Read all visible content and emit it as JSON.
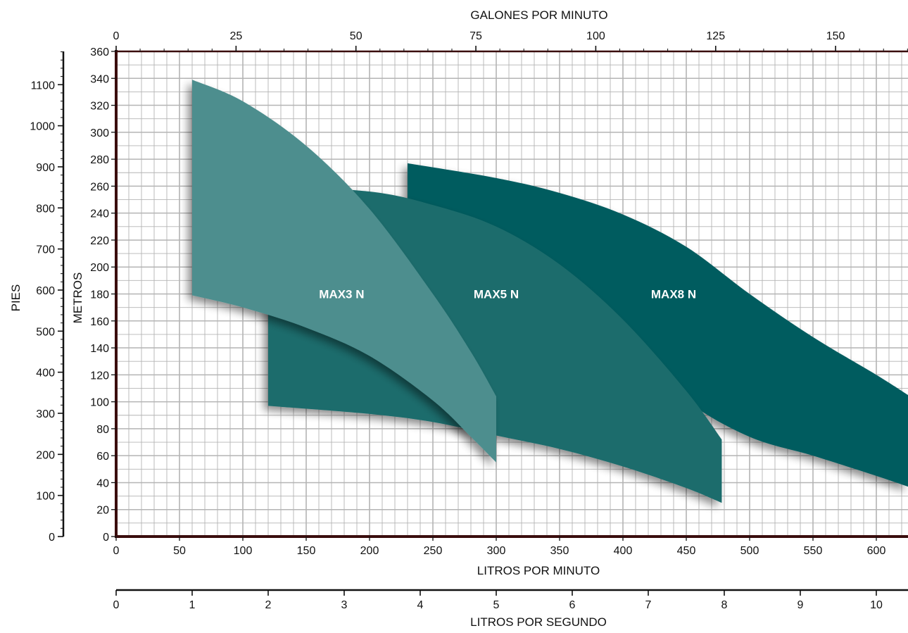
{
  "chart_data": {
    "type": "area",
    "title": "",
    "xlabel": "LITROS POR MINUTO",
    "ylabel": "METROS",
    "xlim": [
      0,
      625
    ],
    "ylim": [
      0,
      360
    ],
    "x_ticks": [
      "0",
      "50",
      "100",
      "150",
      "200",
      "250",
      "300",
      "350",
      "400",
      "450",
      "500",
      "550",
      "600"
    ],
    "y_ticks": [
      "0",
      "20",
      "40",
      "60",
      "80",
      "100",
      "120",
      "140",
      "160",
      "180",
      "200",
      "220",
      "240",
      "260",
      "280",
      "300",
      "320",
      "340",
      "360"
    ],
    "grid": true,
    "colors": {
      "MAX3 N": "#4e8e8e",
      "MAX5 N": "#1c6c6c",
      "MAX8 N": "#035b5e",
      "frame": "#3a0d0d",
      "grid": "#b4b4b4"
    },
    "series": [
      {
        "name": "MAX3 N",
        "label_at": [
          178,
          180
        ],
        "upper": [
          [
            60,
            339
          ],
          [
            100,
            323
          ],
          [
            150,
            290
          ],
          [
            200,
            243
          ],
          [
            250,
            180
          ],
          [
            280,
            137
          ],
          [
            300,
            104
          ]
        ],
        "lower": [
          [
            60,
            179
          ],
          [
            100,
            170
          ],
          [
            150,
            155
          ],
          [
            200,
            134
          ],
          [
            250,
            101
          ],
          [
            280,
            74
          ],
          [
            300,
            55
          ]
        ]
      },
      {
        "name": "MAX5 N",
        "label_at": [
          300,
          180
        ],
        "upper": [
          [
            120,
            260
          ],
          [
            200,
            256
          ],
          [
            250,
            246
          ],
          [
            300,
            230
          ],
          [
            350,
            202
          ],
          [
            400,
            161
          ],
          [
            450,
            108
          ],
          [
            478,
            72
          ]
        ],
        "lower": [
          [
            120,
            97
          ],
          [
            200,
            91
          ],
          [
            250,
            85
          ],
          [
            300,
            75
          ],
          [
            350,
            65
          ],
          [
            400,
            52
          ],
          [
            450,
            36
          ],
          [
            478,
            25
          ]
        ]
      },
      {
        "name": "MAX8 N",
        "label_at": [
          440,
          180
        ],
        "upper": [
          [
            230,
            277
          ],
          [
            300,
            266
          ],
          [
            350,
            255
          ],
          [
            400,
            239
          ],
          [
            450,
            215
          ],
          [
            500,
            180
          ],
          [
            550,
            148
          ],
          [
            600,
            120
          ],
          [
            625,
            105
          ]
        ],
        "lower": [
          [
            230,
            245
          ],
          [
            300,
            200
          ],
          [
            400,
            145
          ],
          [
            450,
            101
          ],
          [
            500,
            74
          ],
          [
            550,
            60
          ],
          [
            600,
            45
          ],
          [
            625,
            37
          ]
        ]
      }
    ],
    "secondary_axes": {
      "left": {
        "label": "PIES",
        "ticks": [
          "0",
          "100",
          "200",
          "300",
          "400",
          "500",
          "600",
          "700",
          "800",
          "900",
          "1000",
          "1100"
        ],
        "max": 1181
      },
      "top": {
        "label": "GALONES POR MINUTO",
        "ticks": [
          "0",
          "25",
          "50",
          "75",
          "100",
          "125",
          "150"
        ],
        "max": 165.1
      },
      "bottom": {
        "label": "LITROS POR SEGUNDO",
        "ticks": [
          "0",
          "1",
          "2",
          "3",
          "4",
          "5",
          "6",
          "7",
          "8",
          "9",
          "10"
        ],
        "max": 10.417
      }
    }
  }
}
